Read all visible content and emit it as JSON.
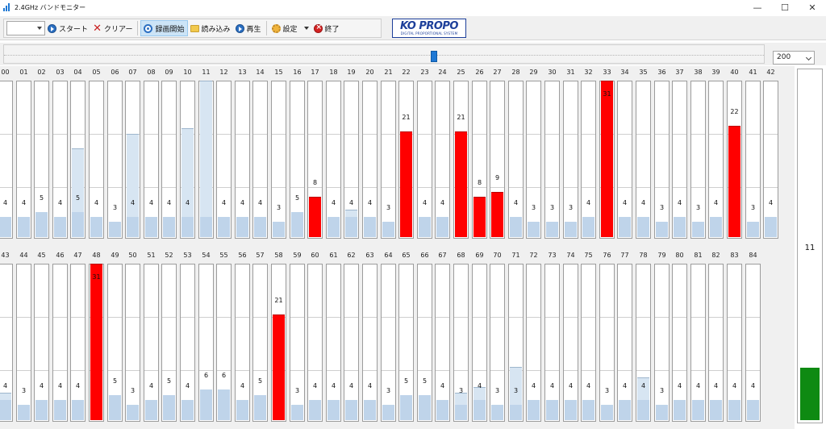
{
  "window": {
    "title": "2.4GHz バンドモニター",
    "minimize": "—",
    "maximize": "☐",
    "close": "✕"
  },
  "toolbar": {
    "start_label": "スタート",
    "clear_label": "クリアー",
    "record_label": "録画開始",
    "load_label": "読み込み",
    "play_label": "再生",
    "settings_label": "設定",
    "exit_label": "終了"
  },
  "logo": {
    "main": "KO PROPO",
    "sub": "DIGITAL PROPORTIONAL SYSTEM"
  },
  "zoom": {
    "selected": "200"
  },
  "channels": [
    {
      "label": "00",
      "value": "4",
      "level": 4,
      "kind": "low"
    },
    {
      "label": "01",
      "value": "4",
      "level": 4,
      "kind": "low"
    },
    {
      "label": "02",
      "value": "5",
      "level": 5,
      "kind": "low"
    },
    {
      "label": "03",
      "value": "4",
      "level": 4,
      "kind": "low"
    },
    {
      "label": "04",
      "value": "5",
      "level": 5,
      "kind": "low",
      "peak": 17.5
    },
    {
      "label": "05",
      "value": "4",
      "level": 4,
      "kind": "low"
    },
    {
      "label": "06",
      "value": "3",
      "level": 3,
      "kind": "low"
    },
    {
      "label": "07",
      "value": "4",
      "level": 4,
      "kind": "low",
      "peak": 20.5
    },
    {
      "label": "08",
      "value": "4",
      "level": 4,
      "kind": "low"
    },
    {
      "label": "09",
      "value": "4",
      "level": 4,
      "kind": "low"
    },
    {
      "label": "10",
      "value": "4",
      "level": 4,
      "kind": "low",
      "peak": 21.5
    },
    {
      "label": "11",
      "value": "",
      "level": 4,
      "kind": "low",
      "peak": 31
    },
    {
      "label": "12",
      "value": "4",
      "level": 4,
      "kind": "low"
    },
    {
      "label": "13",
      "value": "4",
      "level": 4,
      "kind": "low"
    },
    {
      "label": "14",
      "value": "4",
      "level": 4,
      "kind": "low"
    },
    {
      "label": "15",
      "value": "3",
      "level": 3,
      "kind": "low"
    },
    {
      "label": "16",
      "value": "5",
      "level": 5,
      "kind": "low"
    },
    {
      "label": "17",
      "value": "8",
      "level": 8,
      "kind": "hi"
    },
    {
      "label": "18",
      "value": "4",
      "level": 4,
      "kind": "low"
    },
    {
      "label": "19",
      "value": "4",
      "level": 4,
      "kind": "low",
      "peak": 5.5
    },
    {
      "label": "20",
      "value": "4",
      "level": 4,
      "kind": "low"
    },
    {
      "label": "21",
      "value": "3",
      "level": 3,
      "kind": "low"
    },
    {
      "label": "22",
      "value": "21",
      "level": 21,
      "kind": "hi"
    },
    {
      "label": "23",
      "value": "4",
      "level": 4,
      "kind": "low"
    },
    {
      "label": "24",
      "value": "4",
      "level": 4,
      "kind": "low"
    },
    {
      "label": "25",
      "value": "21",
      "level": 21,
      "kind": "hi"
    },
    {
      "label": "26",
      "value": "8",
      "level": 8,
      "kind": "hi"
    },
    {
      "label": "27",
      "value": "9",
      "level": 9,
      "kind": "hi"
    },
    {
      "label": "28",
      "value": "4",
      "level": 4,
      "kind": "low"
    },
    {
      "label": "29",
      "value": "3",
      "level": 3,
      "kind": "low"
    },
    {
      "label": "30",
      "value": "3",
      "level": 3,
      "kind": "low"
    },
    {
      "label": "31",
      "value": "3",
      "level": 3,
      "kind": "low"
    },
    {
      "label": "32",
      "value": "4",
      "level": 4,
      "kind": "low"
    },
    {
      "label": "33",
      "value": "31",
      "level": 31,
      "kind": "hi"
    },
    {
      "label": "34",
      "value": "4",
      "level": 4,
      "kind": "low"
    },
    {
      "label": "35",
      "value": "4",
      "level": 4,
      "kind": "low"
    },
    {
      "label": "36",
      "value": "3",
      "level": 3,
      "kind": "low"
    },
    {
      "label": "37",
      "value": "4",
      "level": 4,
      "kind": "low"
    },
    {
      "label": "38",
      "value": "3",
      "level": 3,
      "kind": "low"
    },
    {
      "label": "39",
      "value": "4",
      "level": 4,
      "kind": "low"
    },
    {
      "label": "40",
      "value": "22",
      "level": 22,
      "kind": "hi"
    },
    {
      "label": "41",
      "value": "3",
      "level": 3,
      "kind": "low"
    },
    {
      "label": "42",
      "value": "4",
      "level": 4,
      "kind": "low"
    },
    {
      "label": "43",
      "value": "4",
      "level": 4,
      "kind": "low",
      "peak": 5.5
    },
    {
      "label": "44",
      "value": "3",
      "level": 3,
      "kind": "low"
    },
    {
      "label": "45",
      "value": "4",
      "level": 4,
      "kind": "low"
    },
    {
      "label": "46",
      "value": "4",
      "level": 4,
      "kind": "low"
    },
    {
      "label": "47",
      "value": "4",
      "level": 4,
      "kind": "low"
    },
    {
      "label": "48",
      "value": "31",
      "level": 31,
      "kind": "hi"
    },
    {
      "label": "49",
      "value": "5",
      "level": 5,
      "kind": "low"
    },
    {
      "label": "50",
      "value": "3",
      "level": 3,
      "kind": "low"
    },
    {
      "label": "51",
      "value": "4",
      "level": 4,
      "kind": "low"
    },
    {
      "label": "52",
      "value": "5",
      "level": 5,
      "kind": "low"
    },
    {
      "label": "53",
      "value": "4",
      "level": 4,
      "kind": "low"
    },
    {
      "label": "54",
      "value": "6",
      "level": 6,
      "kind": "low"
    },
    {
      "label": "55",
      "value": "6",
      "level": 6,
      "kind": "low"
    },
    {
      "label": "56",
      "value": "4",
      "level": 4,
      "kind": "low"
    },
    {
      "label": "57",
      "value": "5",
      "level": 5,
      "kind": "low"
    },
    {
      "label": "58",
      "value": "21",
      "level": 21,
      "kind": "hi"
    },
    {
      "label": "59",
      "value": "3",
      "level": 3,
      "kind": "low"
    },
    {
      "label": "60",
      "value": "4",
      "level": 4,
      "kind": "low"
    },
    {
      "label": "61",
      "value": "4",
      "level": 4,
      "kind": "low"
    },
    {
      "label": "62",
      "value": "4",
      "level": 4,
      "kind": "low"
    },
    {
      "label": "63",
      "value": "4",
      "level": 4,
      "kind": "low"
    },
    {
      "label": "64",
      "value": "3",
      "level": 3,
      "kind": "low"
    },
    {
      "label": "65",
      "value": "5",
      "level": 5,
      "kind": "low"
    },
    {
      "label": "66",
      "value": "5",
      "level": 5,
      "kind": "low"
    },
    {
      "label": "67",
      "value": "4",
      "level": 4,
      "kind": "low"
    },
    {
      "label": "68",
      "value": "3",
      "level": 3,
      "kind": "low",
      "peak": 5.5
    },
    {
      "label": "69",
      "value": "4",
      "level": 4,
      "kind": "low",
      "peak": 6.5
    },
    {
      "label": "70",
      "value": "3",
      "level": 3,
      "kind": "low"
    },
    {
      "label": "71",
      "value": "3",
      "level": 3,
      "kind": "low",
      "peak": 10.5
    },
    {
      "label": "72",
      "value": "4",
      "level": 4,
      "kind": "low"
    },
    {
      "label": "73",
      "value": "4",
      "level": 4,
      "kind": "low"
    },
    {
      "label": "74",
      "value": "4",
      "level": 4,
      "kind": "low"
    },
    {
      "label": "75",
      "value": "4",
      "level": 4,
      "kind": "low"
    },
    {
      "label": "76",
      "value": "3",
      "level": 3,
      "kind": "low"
    },
    {
      "label": "77",
      "value": "4",
      "level": 4,
      "kind": "low"
    },
    {
      "label": "78",
      "value": "4",
      "level": 4,
      "kind": "low",
      "peak": 8.5
    },
    {
      "label": "79",
      "value": "3",
      "level": 3,
      "kind": "low"
    },
    {
      "label": "80",
      "value": "4",
      "level": 4,
      "kind": "low"
    },
    {
      "label": "81",
      "value": "4",
      "level": 4,
      "kind": "low"
    },
    {
      "label": "82",
      "value": "4",
      "level": 4,
      "kind": "low"
    },
    {
      "label": "83",
      "value": "4",
      "level": 4,
      "kind": "low"
    },
    {
      "label": "84",
      "value": "4",
      "level": 4,
      "kind": "low"
    }
  ],
  "scale_max": 31,
  "meter": {
    "value": "11",
    "level": 0.15,
    "color": "#0e8a12"
  },
  "colors": {
    "high_bar": "#ff0000",
    "low_bar": "#bfd4ea",
    "accent": "#1e78d4"
  }
}
